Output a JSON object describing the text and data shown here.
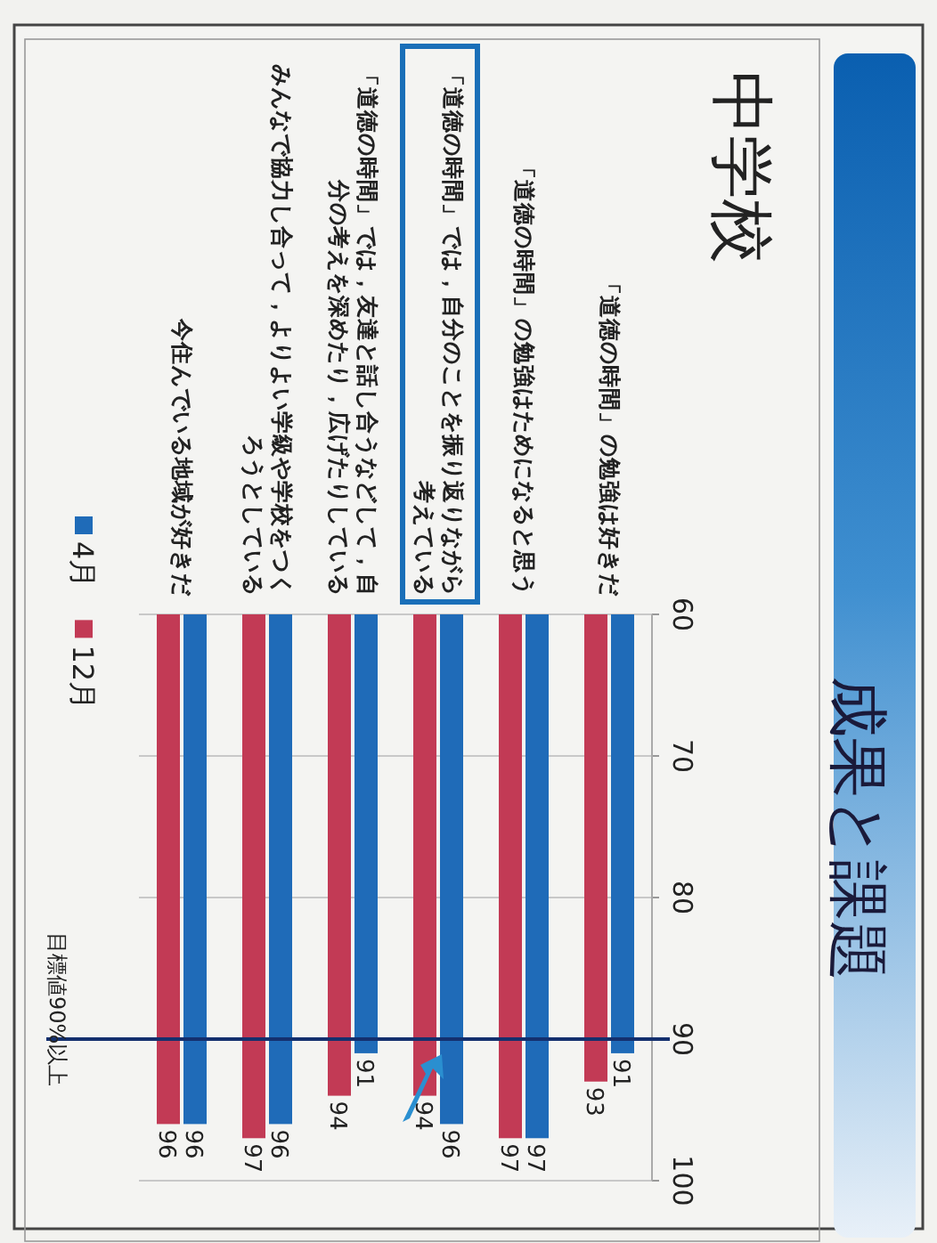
{
  "chart_data": {
    "type": "bar",
    "title": "成果と課題",
    "subtitle": "中学校",
    "categories": [
      "今住んでいる地域が好きだ",
      "みんなで協力し合って，よりよい学級や学校をつくろうとしている",
      "「道徳の時間」では，友達と話し合うなどして，自分の考えを深めたり，広げたりしている",
      "「道徳の時間」では，自分のことを振り返りながら考えている",
      "「道徳の時間」の勉強はためになると思う",
      "「道徳の時間」の勉強は好きだ"
    ],
    "series": [
      {
        "name": "4月",
        "color": "#1f6bb8",
        "values": [
          96,
          96,
          91,
          96,
          97,
          91
        ]
      },
      {
        "name": "12月",
        "color": "#c23a55",
        "values": [
          96,
          97,
          94,
          94,
          97,
          93
        ]
      }
    ],
    "ylim": [
      100,
      60
    ],
    "yticks": [
      60,
      70,
      80,
      90,
      100
    ],
    "grid": "y",
    "data_labels": true,
    "legend": "left",
    "ref_lines": [
      {
        "axis": "y",
        "value": 90,
        "label": "目標値90%以上",
        "color": "#14306e"
      }
    ]
  }
}
